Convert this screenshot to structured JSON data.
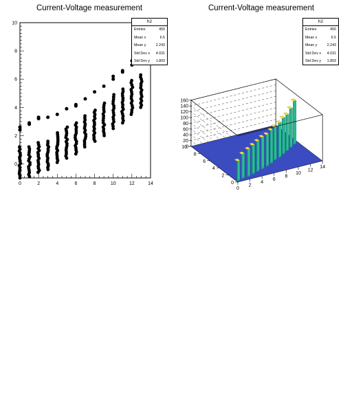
{
  "chart_data": [
    {
      "type": "scatter",
      "title": "Current-Voltage measurement",
      "xlabel": "",
      "ylabel": "",
      "xlim": [
        0,
        14
      ],
      "ylim": [
        -1,
        10
      ],
      "x_ticks": [
        "0",
        "2",
        "4",
        "6",
        "8",
        "10",
        "12",
        "14"
      ],
      "y_ticks": [
        "0",
        "2",
        "4",
        "6",
        "8",
        "10"
      ],
      "x_columns": [
        0,
        1,
        2,
        3,
        4,
        5,
        6,
        7,
        8,
        9,
        10,
        11,
        12,
        13
      ],
      "main_band": {
        "low": [
          -1.0,
          -0.9,
          -0.6,
          -0.4,
          0.1,
          0.4,
          0.7,
          1.2,
          1.6,
          2.0,
          2.5,
          2.9,
          3.5,
          4.0
        ],
        "high": [
          1.2,
          1.2,
          1.5,
          1.6,
          2.2,
          2.6,
          2.9,
          3.4,
          3.8,
          4.3,
          4.9,
          5.3,
          5.9,
          6.3
        ]
      },
      "upper_points": [
        {
          "x": 0,
          "y": [
            2.4,
            2.6
          ]
        },
        {
          "x": 1,
          "y": [
            2.8,
            2.9
          ]
        },
        {
          "x": 2,
          "y": [
            3.2,
            3.3
          ]
        },
        {
          "x": 3,
          "y": [
            3.3
          ]
        },
        {
          "x": 4,
          "y": [
            3.5
          ]
        },
        {
          "x": 5,
          "y": [
            3.9
          ]
        },
        {
          "x": 6,
          "y": [
            4.1,
            4.2
          ]
        },
        {
          "x": 7,
          "y": [
            4.6
          ]
        },
        {
          "x": 8,
          "y": [
            5.1
          ]
        },
        {
          "x": 9,
          "y": [
            5.5
          ]
        },
        {
          "x": 10,
          "y": [
            6.0,
            6.2
          ]
        },
        {
          "x": 11,
          "y": [
            6.5,
            6.6
          ]
        },
        {
          "x": 12,
          "y": [
            7.0,
            7.3
          ]
        }
      ],
      "stats": {
        "name": "h2",
        "rows": [
          {
            "label": "Entries",
            "value": "450"
          },
          {
            "label": "Mean x",
            "value": "6.5"
          },
          {
            "label": "Mean y",
            "value": "2.243"
          },
          {
            "label": "Std Dev x",
            "value": "4.031"
          },
          {
            "label": "Std Dev y",
            "value": "1.803"
          }
        ]
      }
    },
    {
      "type": "lego3d",
      "title": "Current-Voltage measurement",
      "xlim": [
        0,
        14
      ],
      "ylim": [
        0,
        10
      ],
      "zlim": [
        0,
        160
      ],
      "x_ticks": [
        "0",
        "2",
        "4",
        "6",
        "8",
        "10",
        "12",
        "14"
      ],
      "y_ticks": [
        "0",
        "2",
        "4",
        "6",
        "8",
        "10"
      ],
      "z_ticks": [
        "0",
        "20",
        "40",
        "60",
        "80",
        "100",
        "120",
        "140",
        "160"
      ],
      "peaks": [
        {
          "x": 0,
          "y": 0.2,
          "z": 70
        },
        {
          "x": 1,
          "y": 0.5,
          "z": 85
        },
        {
          "x": 2,
          "y": 0.6,
          "z": 95
        },
        {
          "x": 3,
          "y": 0.9,
          "z": 100
        },
        {
          "x": 4,
          "y": 1.2,
          "z": 105
        },
        {
          "x": 5,
          "y": 1.5,
          "z": 110
        },
        {
          "x": 6,
          "y": 1.8,
          "z": 110
        },
        {
          "x": 7,
          "y": 2.2,
          "z": 115
        },
        {
          "x": 8,
          "y": 2.7,
          "z": 115
        },
        {
          "x": 9,
          "y": 3.0,
          "z": 120
        },
        {
          "x": 10,
          "y": 3.5,
          "z": 125
        },
        {
          "x": 11,
          "y": 4.0,
          "z": 125
        },
        {
          "x": 12,
          "y": 4.5,
          "z": 135
        },
        {
          "x": 13,
          "y": 5.0,
          "z": 150
        }
      ],
      "colors": {
        "low": "#3b4cc0",
        "mid": "#1ca9a8",
        "high": "#f2e14a"
      },
      "stats": {
        "name": "h2",
        "rows": [
          {
            "label": "Entries",
            "value": "450"
          },
          {
            "label": "Mean x",
            "value": "6.5"
          },
          {
            "label": "Mean y",
            "value": "2.243"
          },
          {
            "label": "Std Dev x",
            "value": "4.031"
          },
          {
            "label": "Std Dev y",
            "value": "1.803"
          }
        ]
      }
    }
  ]
}
